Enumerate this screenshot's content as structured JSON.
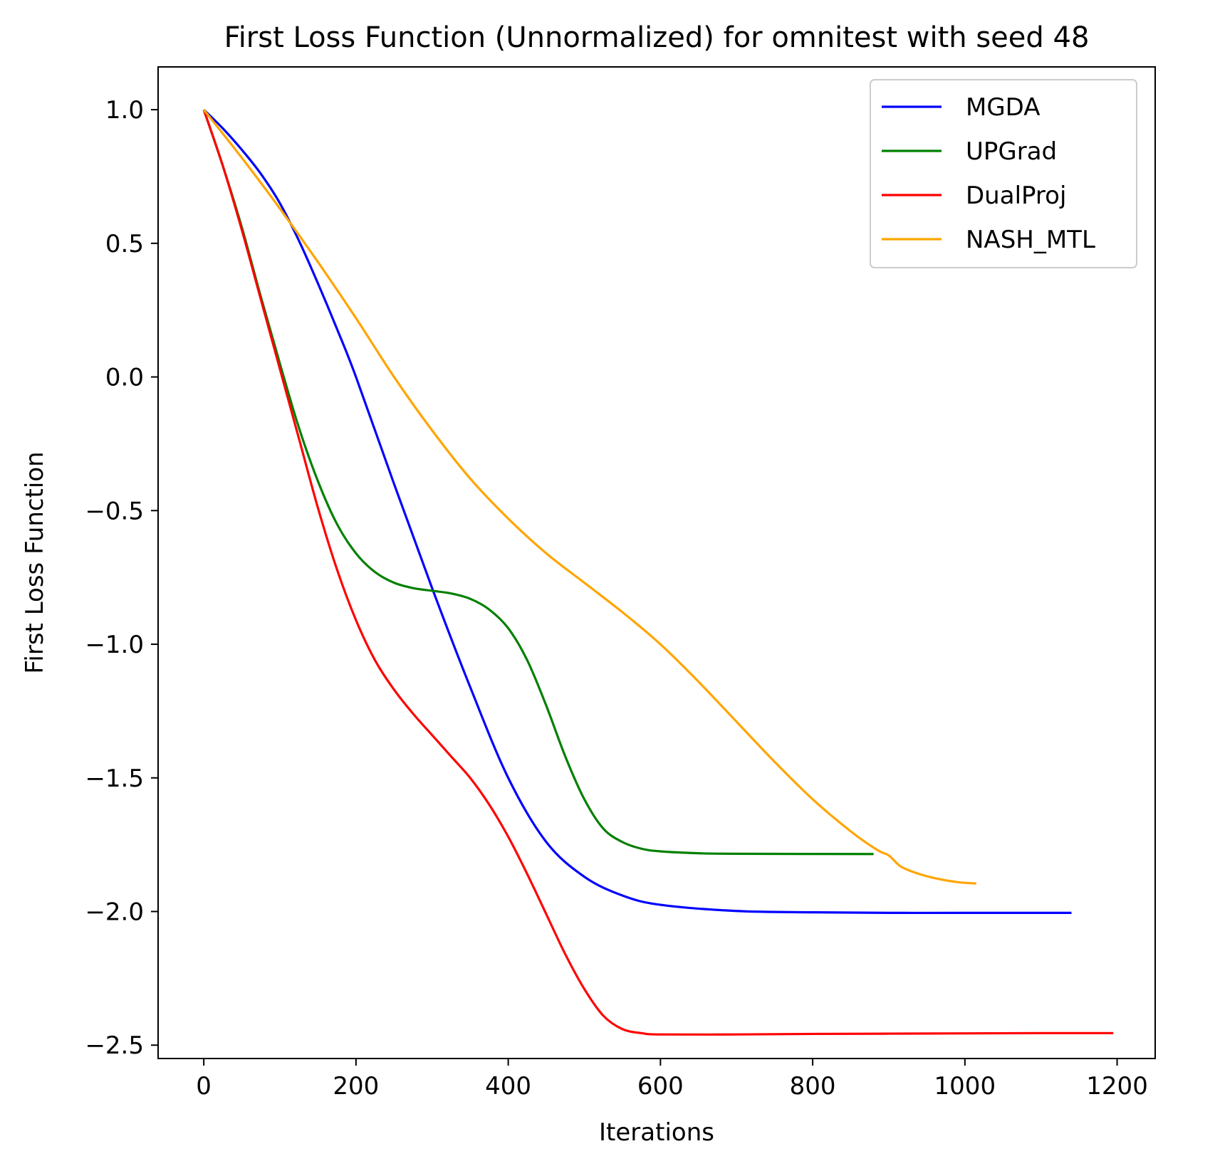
{
  "chart_data": {
    "type": "line",
    "title": "First Loss Function (Unnormalized) for omnitest with seed 48",
    "xlabel": "Iterations",
    "ylabel": "First Loss Function",
    "xlim": [
      -60,
      1250
    ],
    "ylim": [
      -2.55,
      1.16
    ],
    "xticks": [
      0,
      200,
      400,
      600,
      800,
      1000,
      1200
    ],
    "xtick_labels": [
      "0",
      "200",
      "400",
      "600",
      "800",
      "1000",
      "1200"
    ],
    "yticks": [
      1.0,
      0.5,
      0.0,
      -0.5,
      -1.0,
      -1.5,
      -2.0,
      -2.5
    ],
    "ytick_labels": [
      "1.0",
      "0.5",
      "0.0",
      "−0.5",
      "−1.0",
      "−1.5",
      "−2.0",
      "−2.5"
    ],
    "grid": false,
    "legend_position": "top-right",
    "series": [
      {
        "name": "MGDA",
        "color": "#0000ff",
        "x": [
          0,
          25,
          50,
          75,
          100,
          125,
          150,
          175,
          200,
          250,
          300,
          350,
          400,
          450,
          500,
          550,
          600,
          700,
          800,
          900,
          1000,
          1140
        ],
        "y": [
          1.0,
          0.93,
          0.85,
          0.76,
          0.65,
          0.51,
          0.35,
          0.18,
          0.0,
          -0.4,
          -0.79,
          -1.16,
          -1.5,
          -1.74,
          -1.87,
          -1.94,
          -1.975,
          -1.998,
          -2.003,
          -2.005,
          -2.005,
          -2.005
        ]
      },
      {
        "name": "UPGrad",
        "color": "#008000",
        "x": [
          0,
          25,
          50,
          75,
          100,
          125,
          150,
          175,
          200,
          225,
          250,
          275,
          300,
          325,
          350,
          375,
          400,
          425,
          450,
          475,
          500,
          525,
          550,
          575,
          600,
          650,
          700,
          880
        ],
        "y": [
          1.0,
          0.79,
          0.56,
          0.3,
          0.05,
          -0.19,
          -0.39,
          -0.55,
          -0.66,
          -0.73,
          -0.77,
          -0.79,
          -0.8,
          -0.81,
          -0.83,
          -0.87,
          -0.94,
          -1.06,
          -1.23,
          -1.42,
          -1.58,
          -1.69,
          -1.74,
          -1.765,
          -1.775,
          -1.782,
          -1.784,
          -1.785
        ]
      },
      {
        "name": "DualProj",
        "color": "#ff0000",
        "x": [
          0,
          25,
          50,
          75,
          100,
          125,
          150,
          175,
          200,
          225,
          250,
          275,
          300,
          325,
          350,
          375,
          400,
          425,
          450,
          475,
          500,
          525,
          550,
          575,
          600,
          700,
          800,
          900,
          1000,
          1100,
          1195
        ],
        "y": [
          1.0,
          0.79,
          0.55,
          0.29,
          0.03,
          -0.23,
          -0.49,
          -0.72,
          -0.91,
          -1.06,
          -1.17,
          -1.26,
          -1.34,
          -1.42,
          -1.5,
          -1.6,
          -1.72,
          -1.86,
          -2.01,
          -2.16,
          -2.29,
          -2.39,
          -2.44,
          -2.455,
          -2.46,
          -2.46,
          -2.458,
          -2.457,
          -2.456,
          -2.455,
          -2.455
        ]
      },
      {
        "name": "NASH_MTL",
        "color": "#ffa500",
        "x": [
          0,
          50,
          100,
          150,
          200,
          250,
          300,
          350,
          400,
          450,
          500,
          550,
          600,
          650,
          700,
          750,
          800,
          850,
          885,
          900,
          915,
          935,
          960,
          990,
          1015
        ],
        "y": [
          1.0,
          0.82,
          0.63,
          0.43,
          0.22,
          0.0,
          -0.2,
          -0.38,
          -0.53,
          -0.66,
          -0.77,
          -0.88,
          -1.0,
          -1.14,
          -1.29,
          -1.44,
          -1.58,
          -1.7,
          -1.77,
          -1.79,
          -1.83,
          -1.855,
          -1.875,
          -1.89,
          -1.895
        ]
      }
    ]
  }
}
